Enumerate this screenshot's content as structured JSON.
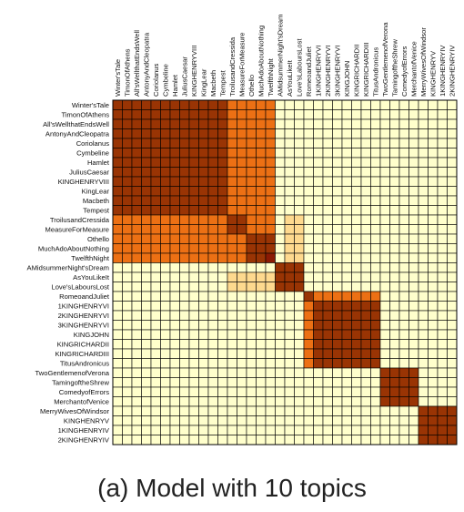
{
  "caption": "(a) Model with 10 topics",
  "chart_data": {
    "type": "heatmap",
    "title": "",
    "labels": [
      "Winter'sTale",
      "TimonOfAthens",
      "All'sWellthatEndsWell",
      "AntonyAndCleopatra",
      "Coriolanus",
      "Cymbeline",
      "Hamlet",
      "JuliusCaesar",
      "KINGHENRYVIII",
      "KingLear",
      "Macbeth",
      "Tempest",
      "TroilusandCressida",
      "MeasureForMeasure",
      "Othello",
      "MuchAdoAboutNothing",
      "TwelfthNight",
      "AMidsummerNight'sDream",
      "AsYouLikeIt",
      "Love'sLaboursLost",
      "RomeoandJuliet",
      "1KINGHENRYVI",
      "2KINGHENRYVI",
      "3KINGHENRYVI",
      "KINGJOHN",
      "KINGRICHARDII",
      "KINGRICHARDIII",
      "TitusAndronicus",
      "TwoGentlemenofVerona",
      "TamingoftheShrew",
      "ComedyofErrors",
      "MerchantofVenice",
      "MerryWivesOfWindsor",
      "KINGHENRYV",
      "1KINGHENRYIV",
      "2KINGHENRYIV"
    ],
    "color_scale": {
      "0": "#ffffcc",
      "1": "#fed98e",
      "2": "#fe9929",
      "3": "#ec7014",
      "4": "#993404",
      "5": "#8b1a04"
    },
    "levels": [
      [
        4,
        4,
        4,
        4,
        4,
        4,
        4,
        4,
        4,
        4,
        4,
        4,
        3,
        3,
        3,
        3,
        3,
        0,
        0,
        0,
        0,
        0,
        0,
        0,
        0,
        0,
        0,
        0,
        0,
        0,
        0,
        0,
        0,
        0,
        0,
        0
      ],
      [
        4,
        4,
        4,
        4,
        4,
        4,
        4,
        4,
        4,
        4,
        4,
        4,
        3,
        3,
        3,
        3,
        3,
        0,
        0,
        0,
        0,
        0,
        0,
        0,
        0,
        0,
        0,
        0,
        0,
        0,
        0,
        0,
        0,
        0,
        0,
        0
      ],
      [
        4,
        4,
        4,
        4,
        4,
        4,
        4,
        4,
        4,
        4,
        4,
        4,
        3,
        3,
        3,
        3,
        3,
        0,
        0,
        0,
        0,
        0,
        0,
        0,
        0,
        0,
        0,
        0,
        0,
        0,
        0,
        0,
        0,
        0,
        0,
        0
      ],
      [
        4,
        4,
        4,
        4,
        4,
        4,
        4,
        4,
        4,
        4,
        4,
        4,
        3,
        3,
        3,
        3,
        3,
        0,
        0,
        0,
        0,
        0,
        0,
        0,
        0,
        0,
        0,
        0,
        0,
        0,
        0,
        0,
        0,
        0,
        0,
        0
      ],
      [
        4,
        4,
        4,
        4,
        4,
        4,
        4,
        4,
        4,
        4,
        4,
        4,
        3,
        3,
        3,
        3,
        3,
        0,
        0,
        0,
        0,
        0,
        0,
        0,
        0,
        0,
        0,
        0,
        0,
        0,
        0,
        0,
        0,
        0,
        0,
        0
      ],
      [
        4,
        4,
        4,
        4,
        4,
        4,
        4,
        4,
        4,
        4,
        4,
        4,
        3,
        3,
        3,
        3,
        3,
        0,
        0,
        0,
        0,
        0,
        0,
        0,
        0,
        0,
        0,
        0,
        0,
        0,
        0,
        0,
        0,
        0,
        0,
        0
      ],
      [
        4,
        4,
        4,
        4,
        4,
        4,
        4,
        4,
        4,
        4,
        4,
        4,
        3,
        3,
        3,
        3,
        3,
        0,
        0,
        0,
        0,
        0,
        0,
        0,
        0,
        0,
        0,
        0,
        0,
        0,
        0,
        0,
        0,
        0,
        0,
        0
      ],
      [
        4,
        4,
        4,
        4,
        4,
        4,
        4,
        4,
        4,
        4,
        4,
        4,
        3,
        3,
        3,
        3,
        3,
        0,
        0,
        0,
        0,
        0,
        0,
        0,
        0,
        0,
        0,
        0,
        0,
        0,
        0,
        0,
        0,
        0,
        0,
        0
      ],
      [
        4,
        4,
        4,
        4,
        4,
        4,
        4,
        4,
        4,
        4,
        4,
        4,
        3,
        3,
        3,
        3,
        3,
        0,
        0,
        0,
        0,
        0,
        0,
        0,
        0,
        0,
        0,
        0,
        0,
        0,
        0,
        0,
        0,
        0,
        0,
        0
      ],
      [
        4,
        4,
        4,
        4,
        4,
        4,
        4,
        4,
        4,
        4,
        4,
        4,
        3,
        3,
        3,
        3,
        3,
        0,
        0,
        0,
        0,
        0,
        0,
        0,
        0,
        0,
        0,
        0,
        0,
        0,
        0,
        0,
        0,
        0,
        0,
        0
      ],
      [
        4,
        4,
        4,
        4,
        4,
        4,
        4,
        4,
        4,
        4,
        4,
        4,
        3,
        3,
        3,
        3,
        3,
        0,
        0,
        0,
        0,
        0,
        0,
        0,
        0,
        0,
        0,
        0,
        0,
        0,
        0,
        0,
        0,
        0,
        0,
        0
      ],
      [
        4,
        4,
        4,
        4,
        4,
        4,
        4,
        4,
        4,
        4,
        4,
        4,
        3,
        3,
        3,
        3,
        3,
        0,
        0,
        0,
        0,
        0,
        0,
        0,
        0,
        0,
        0,
        0,
        0,
        0,
        0,
        0,
        0,
        0,
        0,
        0
      ],
      [
        3,
        3,
        3,
        3,
        3,
        3,
        3,
        3,
        3,
        3,
        3,
        3,
        4,
        4,
        3,
        3,
        3,
        0,
        1,
        1,
        0,
        0,
        0,
        0,
        0,
        0,
        0,
        0,
        0,
        0,
        0,
        0,
        0,
        0,
        0,
        0
      ],
      [
        3,
        3,
        3,
        3,
        3,
        3,
        3,
        3,
        3,
        3,
        3,
        3,
        4,
        4,
        3,
        3,
        3,
        0,
        1,
        1,
        0,
        0,
        0,
        0,
        0,
        0,
        0,
        0,
        0,
        0,
        0,
        0,
        0,
        0,
        0,
        0
      ],
      [
        3,
        3,
        3,
        3,
        3,
        3,
        3,
        3,
        3,
        3,
        3,
        3,
        3,
        3,
        4,
        4,
        4,
        0,
        1,
        1,
        0,
        0,
        0,
        0,
        0,
        0,
        0,
        0,
        0,
        0,
        0,
        0,
        0,
        0,
        0,
        0
      ],
      [
        3,
        3,
        3,
        3,
        3,
        3,
        3,
        3,
        3,
        3,
        3,
        3,
        3,
        3,
        4,
        4,
        4,
        0,
        1,
        1,
        0,
        0,
        0,
        0,
        0,
        0,
        0,
        0,
        0,
        0,
        0,
        0,
        0,
        0,
        0,
        0
      ],
      [
        3,
        3,
        3,
        3,
        3,
        3,
        3,
        3,
        3,
        3,
        3,
        3,
        3,
        3,
        4,
        4,
        5,
        0,
        1,
        1,
        0,
        0,
        0,
        0,
        0,
        0,
        0,
        0,
        0,
        0,
        0,
        0,
        0,
        0,
        0,
        0
      ],
      [
        0,
        0,
        0,
        0,
        0,
        0,
        0,
        0,
        0,
        0,
        0,
        0,
        0,
        0,
        0,
        0,
        0,
        4,
        4,
        4,
        0,
        0,
        0,
        0,
        0,
        0,
        0,
        0,
        0,
        0,
        0,
        0,
        0,
        0,
        0,
        0
      ],
      [
        0,
        0,
        0,
        0,
        0,
        0,
        0,
        0,
        0,
        0,
        0,
        0,
        1,
        1,
        1,
        1,
        1,
        4,
        4,
        4,
        0,
        0,
        0,
        0,
        0,
        0,
        0,
        0,
        0,
        0,
        0,
        0,
        0,
        0,
        0,
        0
      ],
      [
        0,
        0,
        0,
        0,
        0,
        0,
        0,
        0,
        0,
        0,
        0,
        0,
        1,
        1,
        1,
        1,
        1,
        4,
        4,
        4,
        0,
        0,
        0,
        0,
        0,
        0,
        0,
        0,
        0,
        0,
        0,
        0,
        0,
        0,
        0,
        0
      ],
      [
        0,
        0,
        0,
        0,
        0,
        0,
        0,
        0,
        0,
        0,
        0,
        0,
        0,
        0,
        0,
        0,
        0,
        0,
        0,
        0,
        4,
        3,
        3,
        3,
        3,
        3,
        3,
        3,
        0,
        0,
        0,
        0,
        0,
        0,
        0,
        0
      ],
      [
        0,
        0,
        0,
        0,
        0,
        0,
        0,
        0,
        0,
        0,
        0,
        0,
        0,
        0,
        0,
        0,
        0,
        0,
        0,
        0,
        3,
        4,
        4,
        4,
        4,
        4,
        4,
        4,
        0,
        0,
        0,
        0,
        0,
        0,
        0,
        0
      ],
      [
        0,
        0,
        0,
        0,
        0,
        0,
        0,
        0,
        0,
        0,
        0,
        0,
        0,
        0,
        0,
        0,
        0,
        0,
        0,
        0,
        3,
        4,
        4,
        4,
        4,
        4,
        4,
        4,
        0,
        0,
        0,
        0,
        0,
        0,
        0,
        0
      ],
      [
        0,
        0,
        0,
        0,
        0,
        0,
        0,
        0,
        0,
        0,
        0,
        0,
        0,
        0,
        0,
        0,
        0,
        0,
        0,
        0,
        3,
        4,
        4,
        4,
        4,
        4,
        4,
        4,
        0,
        0,
        0,
        0,
        0,
        0,
        0,
        0
      ],
      [
        0,
        0,
        0,
        0,
        0,
        0,
        0,
        0,
        0,
        0,
        0,
        0,
        0,
        0,
        0,
        0,
        0,
        0,
        0,
        0,
        3,
        4,
        4,
        4,
        4,
        4,
        4,
        4,
        0,
        0,
        0,
        0,
        0,
        0,
        0,
        0
      ],
      [
        0,
        0,
        0,
        0,
        0,
        0,
        0,
        0,
        0,
        0,
        0,
        0,
        0,
        0,
        0,
        0,
        0,
        0,
        0,
        0,
        3,
        4,
        4,
        4,
        4,
        4,
        4,
        4,
        0,
        0,
        0,
        0,
        0,
        0,
        0,
        0
      ],
      [
        0,
        0,
        0,
        0,
        0,
        0,
        0,
        0,
        0,
        0,
        0,
        0,
        0,
        0,
        0,
        0,
        0,
        0,
        0,
        0,
        3,
        4,
        4,
        4,
        4,
        4,
        4,
        4,
        0,
        0,
        0,
        0,
        0,
        0,
        0,
        0
      ],
      [
        0,
        0,
        0,
        0,
        0,
        0,
        0,
        0,
        0,
        0,
        0,
        0,
        0,
        0,
        0,
        0,
        0,
        0,
        0,
        0,
        3,
        4,
        4,
        4,
        4,
        4,
        4,
        4,
        0,
        0,
        0,
        0,
        0,
        0,
        0,
        0
      ],
      [
        0,
        0,
        0,
        0,
        0,
        0,
        0,
        0,
        0,
        0,
        0,
        0,
        0,
        0,
        0,
        0,
        0,
        0,
        0,
        0,
        0,
        0,
        0,
        0,
        0,
        0,
        0,
        0,
        4,
        4,
        4,
        4,
        0,
        0,
        0,
        0
      ],
      [
        0,
        0,
        0,
        0,
        0,
        0,
        0,
        0,
        0,
        0,
        0,
        0,
        0,
        0,
        0,
        0,
        0,
        0,
        0,
        0,
        0,
        0,
        0,
        0,
        0,
        0,
        0,
        0,
        4,
        4,
        4,
        4,
        0,
        0,
        0,
        0
      ],
      [
        0,
        0,
        0,
        0,
        0,
        0,
        0,
        0,
        0,
        0,
        0,
        0,
        0,
        0,
        0,
        0,
        0,
        0,
        0,
        0,
        0,
        0,
        0,
        0,
        0,
        0,
        0,
        0,
        4,
        4,
        4,
        4,
        0,
        0,
        0,
        0
      ],
      [
        0,
        0,
        0,
        0,
        0,
        0,
        0,
        0,
        0,
        0,
        0,
        0,
        0,
        0,
        0,
        0,
        0,
        0,
        0,
        0,
        0,
        0,
        0,
        0,
        0,
        0,
        0,
        0,
        4,
        4,
        4,
        4,
        0,
        0,
        0,
        0
      ],
      [
        0,
        0,
        0,
        0,
        0,
        0,
        0,
        0,
        0,
        0,
        0,
        0,
        0,
        0,
        0,
        0,
        0,
        0,
        0,
        0,
        0,
        0,
        0,
        0,
        0,
        0,
        0,
        0,
        0,
        0,
        0,
        0,
        4,
        4,
        4,
        4
      ],
      [
        0,
        0,
        0,
        0,
        0,
        0,
        0,
        0,
        0,
        0,
        0,
        0,
        0,
        0,
        0,
        0,
        0,
        0,
        0,
        0,
        0,
        0,
        0,
        0,
        0,
        0,
        0,
        0,
        0,
        0,
        0,
        0,
        4,
        4,
        4,
        4
      ],
      [
        0,
        0,
        0,
        0,
        0,
        0,
        0,
        0,
        0,
        0,
        0,
        0,
        0,
        0,
        0,
        0,
        0,
        0,
        0,
        0,
        0,
        0,
        0,
        0,
        0,
        0,
        0,
        0,
        0,
        0,
        0,
        0,
        4,
        4,
        4,
        4
      ],
      [
        0,
        0,
        0,
        0,
        0,
        0,
        0,
        0,
        0,
        0,
        0,
        0,
        0,
        0,
        0,
        0,
        0,
        0,
        0,
        0,
        0,
        0,
        0,
        0,
        0,
        0,
        0,
        0,
        0,
        0,
        0,
        0,
        4,
        4,
        4,
        4
      ]
    ]
  }
}
